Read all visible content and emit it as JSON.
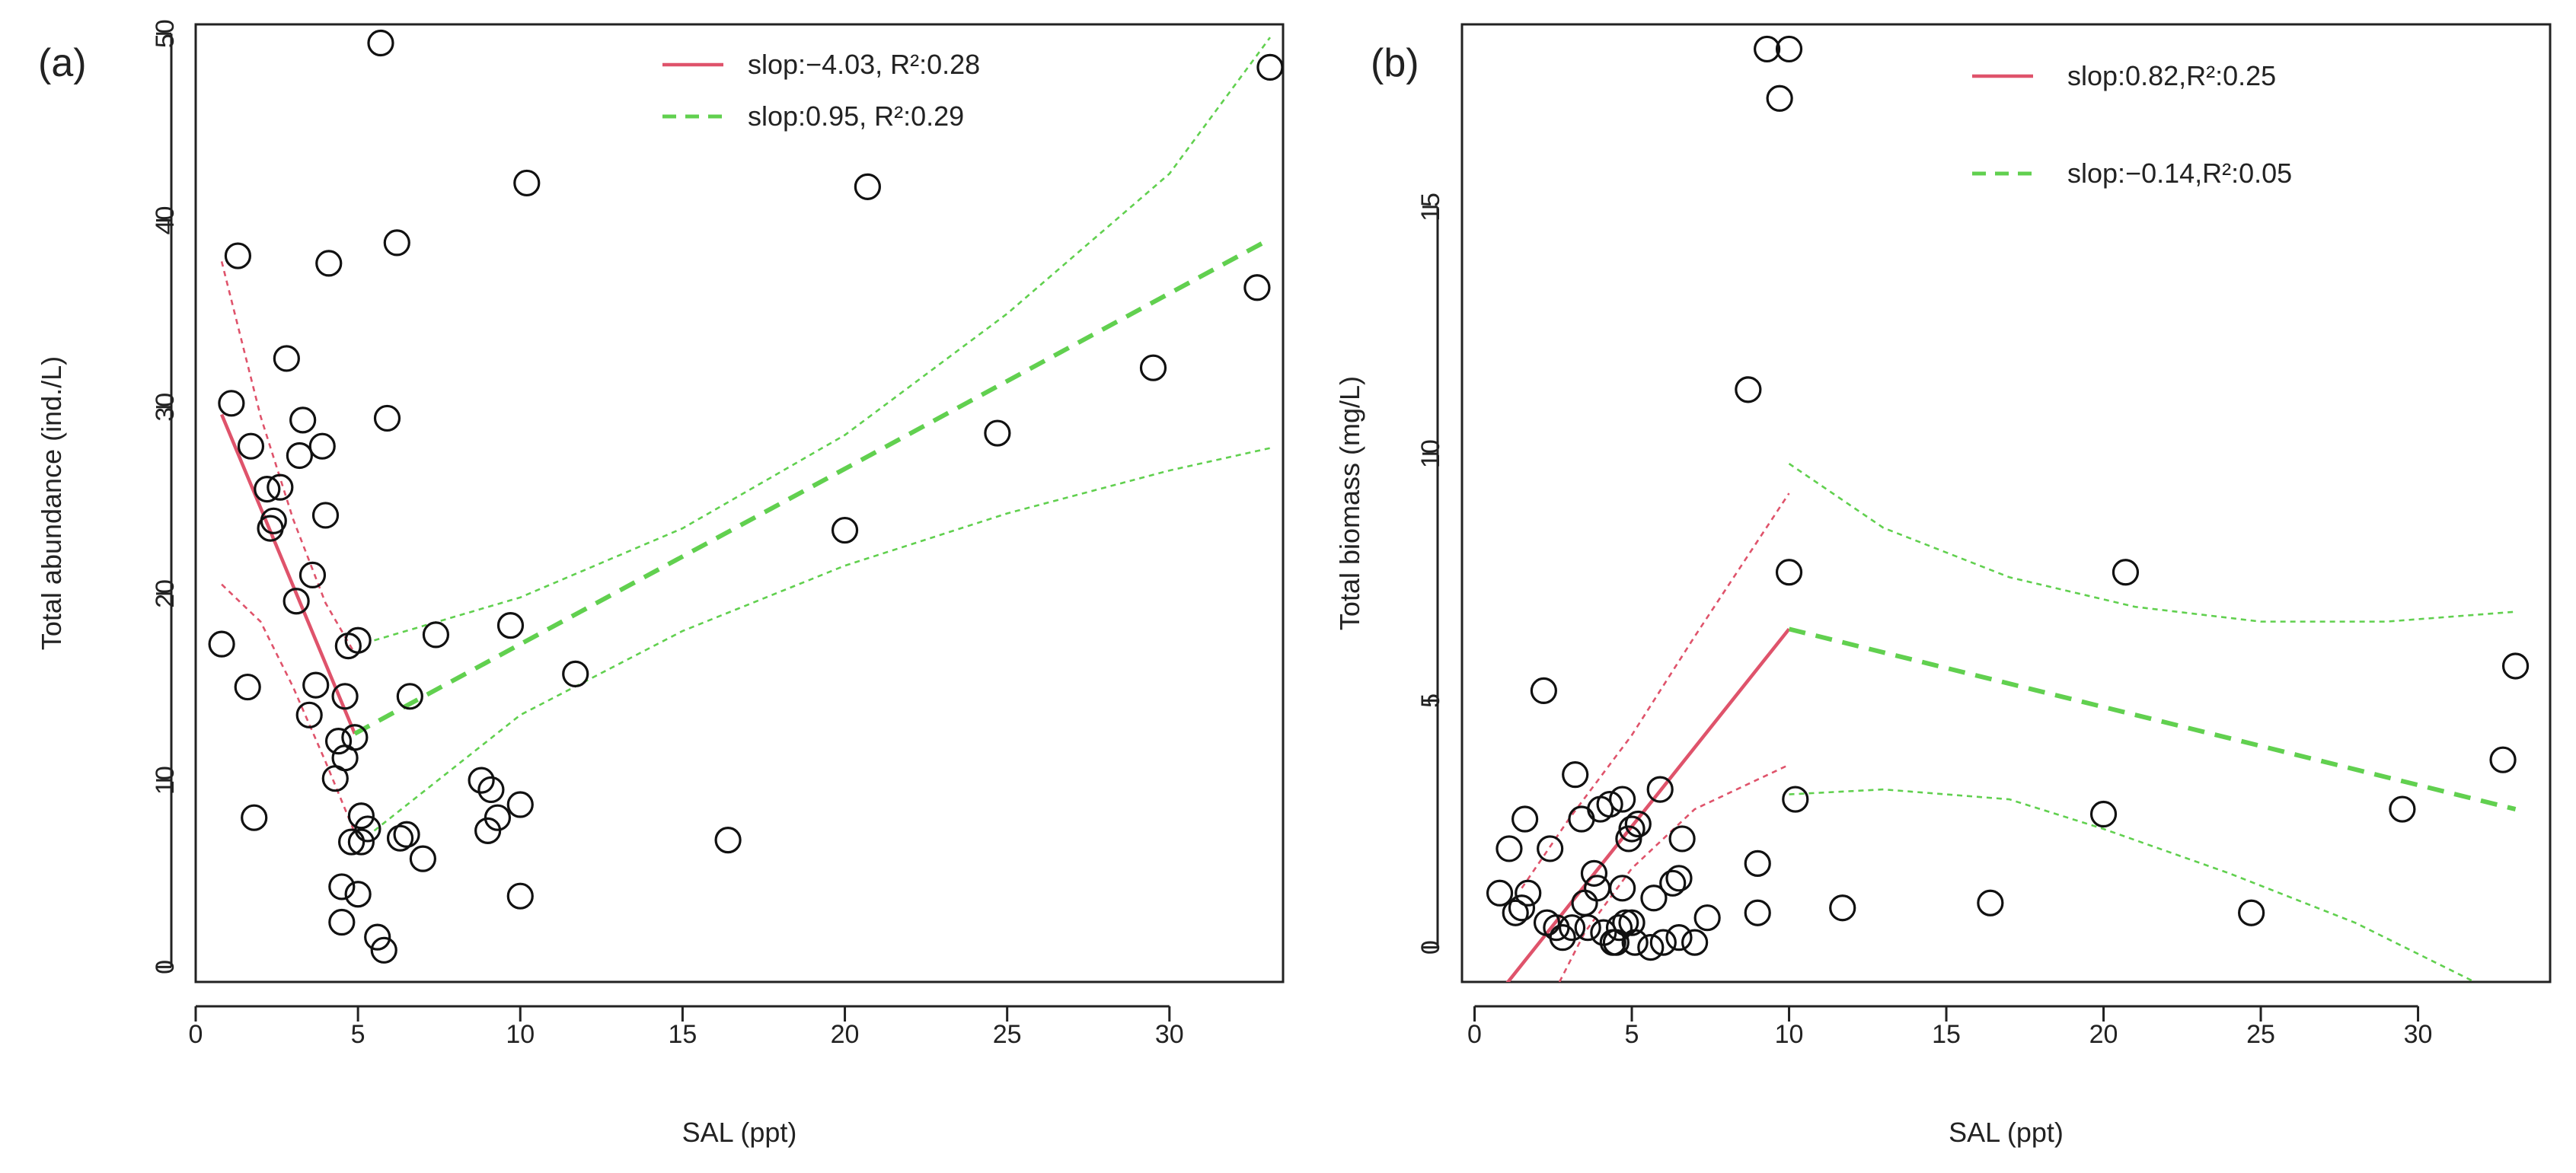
{
  "colors": {
    "red": "#df536b",
    "green": "#61d04f",
    "black": "#111111"
  },
  "chart_data": [
    {
      "type": "scatter",
      "panel_label": "(a)",
      "xlabel": "SAL (ppt)",
      "ylabel": "Total abundance (ind./L)",
      "xlim": [
        0,
        33.5
      ],
      "ylim": [
        -0.8,
        50.5
      ],
      "xticks": [
        0,
        5,
        10,
        15,
        20,
        25,
        30
      ],
      "yticks": [
        0,
        10,
        20,
        30,
        40,
        50
      ],
      "xtick_labels": [
        "0",
        "5",
        "10",
        "15",
        "20",
        "25",
        "30"
      ],
      "ytick_labels": [
        "0",
        "10",
        "20",
        "30",
        "40",
        "50"
      ],
      "legend": [
        {
          "label": "slop:−4.03, R²:0.28",
          "color": "#df536b",
          "style": "solid"
        },
        {
          "label": "slop:0.95, R²:0.29",
          "color": "#61d04f",
          "style": "dashed"
        }
      ],
      "points": [
        [
          0.8,
          17.3
        ],
        [
          1.1,
          30.2
        ],
        [
          1.3,
          38.1
        ],
        [
          1.6,
          15
        ],
        [
          1.7,
          27.9
        ],
        [
          1.8,
          8
        ],
        [
          2.2,
          25.6
        ],
        [
          2.3,
          23.5
        ],
        [
          2.4,
          23.9
        ],
        [
          2.6,
          25.7
        ],
        [
          2.8,
          32.6
        ],
        [
          3.1,
          19.6
        ],
        [
          3.2,
          27.4
        ],
        [
          3.3,
          29.3
        ],
        [
          3.5,
          13.5
        ],
        [
          3.6,
          21
        ],
        [
          3.7,
          15.1
        ],
        [
          3.9,
          27.9
        ],
        [
          4,
          24.2
        ],
        [
          4.1,
          37.7
        ],
        [
          4.3,
          10.1
        ],
        [
          4.4,
          12.1
        ],
        [
          4.5,
          4.3
        ],
        [
          4.5,
          2.4
        ],
        [
          4.6,
          11.2
        ],
        [
          4.6,
          14.5
        ],
        [
          4.7,
          17.2
        ],
        [
          4.8,
          6.7
        ],
        [
          4.9,
          12.3
        ],
        [
          5,
          3.9
        ],
        [
          5,
          17.5
        ],
        [
          5.1,
          8.1
        ],
        [
          5.1,
          6.7
        ],
        [
          5.3,
          7.4
        ],
        [
          5.6,
          1.6
        ],
        [
          5.7,
          49.5
        ],
        [
          5.8,
          0.9
        ],
        [
          5.9,
          29.4
        ],
        [
          6.2,
          38.8
        ],
        [
          6.3,
          6.9
        ],
        [
          6.5,
          7.1
        ],
        [
          6.6,
          14.5
        ],
        [
          7,
          5.8
        ],
        [
          7.4,
          17.8
        ],
        [
          8.8,
          10
        ],
        [
          9,
          7.3
        ],
        [
          9.1,
          9.5
        ],
        [
          9.3,
          8
        ],
        [
          9.7,
          18.3
        ],
        [
          10,
          3.8
        ],
        [
          10,
          8.7
        ],
        [
          10.2,
          42
        ],
        [
          11.7,
          15.7
        ],
        [
          16.4,
          6.8
        ],
        [
          20,
          23.4
        ],
        [
          20.7,
          41.8
        ],
        [
          24.7,
          28.6
        ],
        [
          29.5,
          32.1
        ],
        [
          32.7,
          36.4
        ],
        [
          33.1,
          48.2
        ]
      ],
      "fits": [
        {
          "color": "#df536b",
          "style": "solid",
          "x": [
            0.8,
            4.9
          ],
          "y": [
            29.6,
            12.5
          ]
        },
        {
          "color": "#61d04f",
          "style": "dashed",
          "x": [
            4.9,
            33.1
          ],
          "y": [
            12.5,
            39.0
          ]
        }
      ],
      "confidence_bands": [
        {
          "color": "#df536b",
          "x": [
            0.8,
            2,
            3,
            4,
            4.9
          ],
          "y": [
            37.8,
            29.5,
            24,
            19.5,
            16.8
          ]
        },
        {
          "color": "#df536b",
          "x": [
            0.8,
            2,
            3,
            4,
            4.9
          ],
          "y": [
            20.5,
            18.5,
            15,
            11,
            7.2
          ]
        },
        {
          "color": "#61d04f",
          "x": [
            5.5,
            10,
            15,
            20,
            25,
            30,
            33.1
          ],
          "y": [
            17.5,
            19.8,
            23.5,
            28.5,
            35,
            42.5,
            49.8
          ]
        },
        {
          "color": "#61d04f",
          "x": [
            5.5,
            10,
            15,
            20,
            25,
            30,
            33.1
          ],
          "y": [
            7.3,
            13.5,
            18,
            21.5,
            24.3,
            26.6,
            27.8
          ]
        }
      ]
    },
    {
      "type": "scatter",
      "panel_label": "(b)",
      "xlabel": "SAL (ppt)",
      "ylabel": "Total biomass (mg/L)",
      "xlim": [
        -0.4,
        34.2
      ],
      "ylim": [
        -0.7,
        18.7
      ],
      "xticks": [
        0,
        5,
        10,
        15,
        20,
        25,
        30
      ],
      "yticks": [
        0,
        5,
        10,
        15
      ],
      "xtick_labels": [
        "0",
        "5",
        "10",
        "15",
        "20",
        "25",
        "30"
      ],
      "ytick_labels": [
        "0",
        "5",
        "10",
        "15"
      ],
      "legend": [
        {
          "label": "slop:0.82,R²:0.25",
          "color": "#df536b",
          "style": "solid"
        },
        {
          "label": "slop:−0.14,R²:0.05",
          "color": "#61d04f",
          "style": "dashed"
        }
      ],
      "points": [
        [
          0.8,
          1.1
        ],
        [
          1.1,
          2
        ],
        [
          1.3,
          0.7
        ],
        [
          1.5,
          0.8
        ],
        [
          1.6,
          2.6
        ],
        [
          1.7,
          1.1
        ],
        [
          2.2,
          5.2
        ],
        [
          2.3,
          0.5
        ],
        [
          2.4,
          2
        ],
        [
          2.6,
          0.4
        ],
        [
          2.8,
          0.2
        ],
        [
          3.1,
          0.4
        ],
        [
          3.2,
          3.5
        ],
        [
          3.4,
          2.6
        ],
        [
          3.5,
          0.9
        ],
        [
          3.6,
          0.4
        ],
        [
          3.8,
          1.5
        ],
        [
          3.9,
          1.2
        ],
        [
          4,
          2.8
        ],
        [
          4.1,
          0.3
        ],
        [
          4.3,
          2.9
        ],
        [
          4.4,
          0.1
        ],
        [
          4.5,
          0.1
        ],
        [
          4.6,
          0.4
        ],
        [
          4.7,
          1.2
        ],
        [
          4.7,
          3
        ],
        [
          4.8,
          0.5
        ],
        [
          4.9,
          2.2
        ],
        [
          5,
          0.5
        ],
        [
          5,
          2.4
        ],
        [
          5.1,
          0.1
        ],
        [
          5.2,
          2.5
        ],
        [
          5.6,
          0
        ],
        [
          5.7,
          1
        ],
        [
          5.9,
          3.2
        ],
        [
          6,
          0.1
        ],
        [
          6.3,
          1.3
        ],
        [
          6.5,
          0.2
        ],
        [
          6.5,
          1.4
        ],
        [
          6.6,
          2.2
        ],
        [
          7,
          0.1
        ],
        [
          7.4,
          0.6
        ],
        [
          8.7,
          11.3
        ],
        [
          9,
          0.7
        ],
        [
          9,
          1.7
        ],
        [
          9.3,
          18.2
        ],
        [
          9.7,
          17.2
        ],
        [
          10,
          18.2
        ],
        [
          10,
          7.6
        ],
        [
          10.2,
          3
        ],
        [
          11.7,
          0.8
        ],
        [
          16.4,
          0.9
        ],
        [
          20,
          2.7
        ],
        [
          20.7,
          7.6
        ],
        [
          24.7,
          0.7
        ],
        [
          29.5,
          2.8
        ],
        [
          32.7,
          3.8
        ],
        [
          33.1,
          5.7
        ]
      ],
      "fits": [
        {
          "color": "#df536b",
          "style": "solid",
          "x": [
            1.0,
            10.0
          ],
          "y": [
            -0.75,
            6.45
          ]
        },
        {
          "color": "#61d04f",
          "style": "dashed",
          "x": [
            10.0,
            33.1
          ],
          "y": [
            6.45,
            2.8
          ]
        }
      ],
      "confidence_bands": [
        {
          "color": "#df536b",
          "x": [
            1.5,
            3,
            5,
            7,
            10
          ],
          "y": [
            1.2,
            2.6,
            4.3,
            6.3,
            9.2
          ]
        },
        {
          "color": "#df536b",
          "x": [
            2.7,
            3.5,
            5,
            7,
            10
          ],
          "y": [
            -0.7,
            0.3,
            1.6,
            2.8,
            3.7
          ]
        },
        {
          "color": "#61d04f",
          "x": [
            10,
            13,
            17,
            21,
            25,
            29,
            33.1
          ],
          "y": [
            9.8,
            8.5,
            7.5,
            6.9,
            6.6,
            6.6,
            6.8
          ]
        },
        {
          "color": "#61d04f",
          "x": [
            10,
            13,
            17,
            20,
            24,
            28,
            31.8
          ],
          "y": [
            3.1,
            3.2,
            3.0,
            2.4,
            1.5,
            0.5,
            -0.7
          ]
        }
      ]
    }
  ]
}
